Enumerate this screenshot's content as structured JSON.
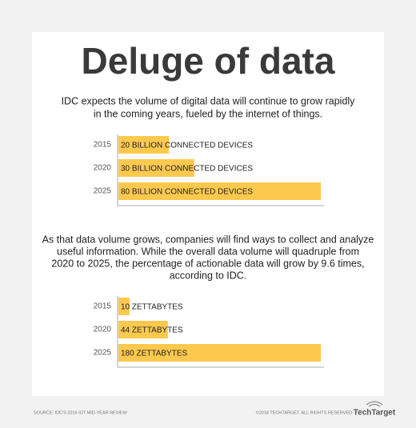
{
  "title": "Deluge of data",
  "intro_lines": [
    "IDC expects the volume of digital data will continue to grow rapidly",
    "in the coming years, fueled by the internet of things."
  ],
  "middle_lines": [
    "As that data volume grows, companies will find ways to collect and analyze",
    "useful information. While the overall data volume will quadruple from",
    "2020 to 2025, the percentage of actionable data will grow by 9.6 times,",
    "according to IDC."
  ],
  "chart_data": [
    {
      "type": "hbar",
      "categories": [
        "2015",
        "2020",
        "2025"
      ],
      "values": [
        20,
        30,
        80
      ],
      "value_labels": [
        "20 BILLION CONNECTED DEVICES",
        "30 BILLION CONNECTED DEVICES",
        "80 BILLION CONNECTED DEVICES"
      ],
      "color": "#fcc94f",
      "xlim": [
        0,
        80
      ]
    },
    {
      "type": "hbar",
      "categories": [
        "2015",
        "2020",
        "2025"
      ],
      "values": [
        10,
        44,
        180
      ],
      "value_labels": [
        "10 ZETTABYTES",
        "44 ZETTABYTES",
        "180 ZETTABYTES"
      ],
      "color": "#fcc94f",
      "xlim": [
        0,
        180
      ]
    }
  ],
  "footer": {
    "source": "SOURCE: IDC'S 2016 IOT MID-YEAR REVIEW",
    "copyright": "©2018 TECHTARGET. ALL RIGHTS RESERVED",
    "logo": "TechTarget"
  }
}
